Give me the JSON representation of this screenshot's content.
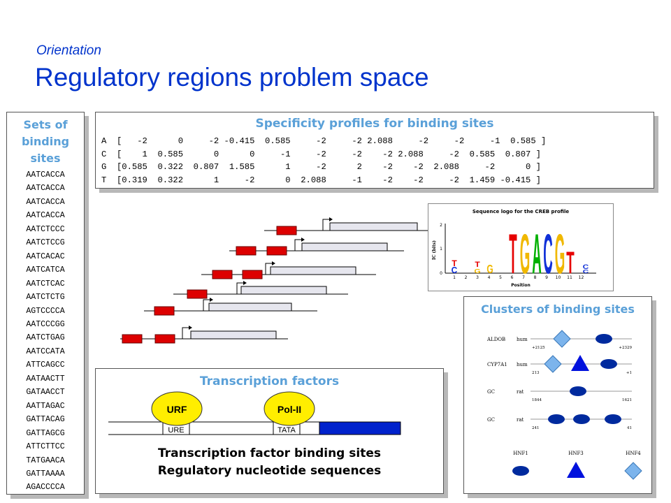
{
  "header": {
    "subtitle": "Orientation",
    "title": "Regulatory regions problem space"
  },
  "sets_panel": {
    "title": "Sets of binding sites",
    "sequences": [
      "AATCACCA",
      "AATCACCA",
      "AATCACCA",
      "AATCACCA",
      "AATCTCCC",
      "AATCTCCG",
      "AATCACAC",
      "AATCATCA",
      "AATCTCAC",
      "AATCTCTG",
      "AGTCCCCA",
      "AATCCCGG",
      "AATCTGAG",
      "AATCCATA",
      "ATTCAGCC",
      "AATAACTT",
      "GATAACCT",
      "AATTAGAC",
      "GATTACAG",
      "GATTAGCG",
      "ATTCTTCC",
      "TATGAACA",
      "GATTAAAA",
      "AGACCCCA"
    ]
  },
  "specificity_panel": {
    "title": "Specificity profiles for binding sites",
    "rows": [
      "A  [   -2      0     -2 -0.415  0.585     -2     -2 2.088     -2     -2     -1  0.585 ]",
      "C  [    1  0.585      0      0     -1     -2     -2    -2 2.088     -2  0.585  0.807 ]",
      "G  [0.585  0.322  0.807  1.585      1     -2      2    -2    -2  2.088     -2      0 ]",
      "T  [0.319  0.322      1     -2      0  2.088     -1    -2    -2     -2  1.459 -0.415 ]"
    ]
  },
  "sequence_logo": {
    "title": "Sequence logo for the CREB profile",
    "ylabel": "IC (bits)",
    "xlabel": "Position",
    "y_ticks": [
      "0",
      "1",
      "2"
    ],
    "positions": [
      "1",
      "2",
      "3",
      "4",
      "5",
      "6",
      "7",
      "8",
      "9",
      "10",
      "11",
      "12"
    ],
    "big_letters": [
      "T",
      "G",
      "A",
      "C",
      "G",
      "T"
    ],
    "small_letters": [
      "C",
      "T",
      "G",
      "T",
      "G",
      "C",
      "C"
    ]
  },
  "tf_panel": {
    "title": "Transcription factors",
    "factor_1": "URF",
    "factor_2": "Pol-II",
    "site_1": "URE",
    "site_2": "TATA",
    "caption_1": "Transcription factor binding sites",
    "caption_2": "Regulatory nucleotide sequences"
  },
  "clusters_panel": {
    "title": "Clusters of binding sites",
    "rows": [
      {
        "gene": "ALDOB",
        "species": "hum",
        "left_coord": "+2125",
        "right_coord": "+2329"
      },
      {
        "gene": "CYP7A1",
        "species": "hum",
        "left_coord": "213",
        "right_coord": "+1"
      },
      {
        "gene": "GC",
        "species": "rat",
        "left_coord": "1844",
        "right_coord": "1621"
      },
      {
        "gene": "GC",
        "species": "rat",
        "left_coord": "241",
        "right_coord": "41"
      }
    ],
    "legend": [
      "HNF1",
      "HNF3",
      "HNF4"
    ]
  },
  "colors": {
    "title_blue": "#0033cc",
    "panel_title_blue": "#5aa0d8",
    "site_red": "#dd0000",
    "factor_yellow": "#ffee00",
    "gene_blue": "#0022cc",
    "hnf1_navy": "#002a9e",
    "hnf3_blue": "#0011dd",
    "hnf4_lightblue": "#7cb4ec",
    "logo_t": "#e60000",
    "logo_g": "#f0b800",
    "logo_a": "#00b000",
    "logo_c": "#1030d8"
  }
}
